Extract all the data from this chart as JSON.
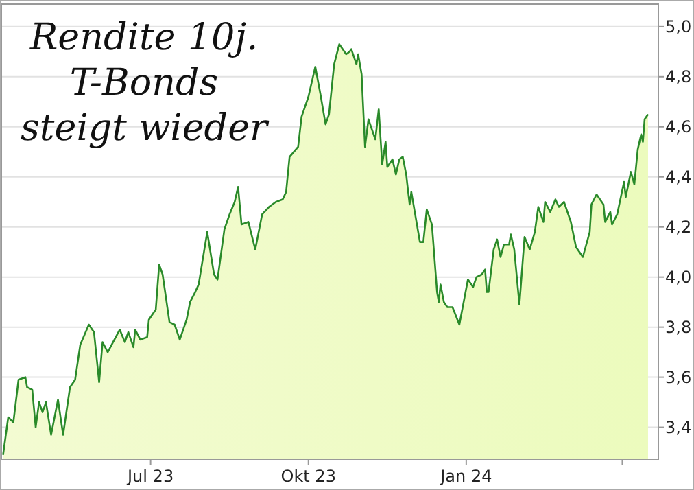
{
  "chart_data": {
    "type": "area",
    "title": "Rendite 10j.\nT-Bonds\nsteigt wieder",
    "x": [
      "2023-04-06",
      "2023-04-09",
      "2023-04-12",
      "2023-04-15",
      "2023-04-19",
      "2023-04-20",
      "2023-04-23",
      "2023-04-25",
      "2023-04-27",
      "2023-04-29",
      "2023-05-01",
      "2023-05-04",
      "2023-05-08",
      "2023-05-11",
      "2023-05-15",
      "2023-05-18",
      "2023-05-21",
      "2023-05-26",
      "2023-05-29",
      "2023-06-01",
      "2023-06-03",
      "2023-06-06",
      "2023-06-13",
      "2023-06-16",
      "2023-06-18",
      "2023-06-21",
      "2023-06-22",
      "2023-06-25",
      "2023-06-29",
      "2023-06-30",
      "2023-07-04",
      "2023-07-06",
      "2023-07-08",
      "2023-07-12",
      "2023-07-15",
      "2023-07-18",
      "2023-07-22",
      "2023-07-24",
      "2023-07-27",
      "2023-07-29",
      "2023-08-03",
      "2023-08-07",
      "2023-08-09",
      "2023-08-13",
      "2023-08-16",
      "2023-08-19",
      "2023-08-21",
      "2023-08-23",
      "2023-08-27",
      "2023-08-31",
      "2023-09-04",
      "2023-09-08",
      "2023-09-12",
      "2023-09-16",
      "2023-09-18",
      "2023-09-20",
      "2023-09-25",
      "2023-09-27",
      "2023-10-01",
      "2023-10-05",
      "2023-10-08",
      "2023-10-11",
      "2023-10-13",
      "2023-10-16",
      "2023-10-19",
      "2023-10-23",
      "2023-10-25",
      "2023-10-26",
      "2023-10-29",
      "2023-10-30",
      "2023-11-01",
      "2023-11-03",
      "2023-11-05",
      "2023-11-09",
      "2023-11-11",
      "2023-11-13",
      "2023-11-15",
      "2023-11-16",
      "2023-11-19",
      "2023-11-21",
      "2023-11-23",
      "2023-11-25",
      "2023-11-27",
      "2023-11-29",
      "2023-11-30",
      "2023-12-05",
      "2023-12-07",
      "2023-12-09",
      "2023-12-12",
      "2023-12-15",
      "2023-12-16",
      "2023-12-17",
      "2023-12-19",
      "2023-12-21",
      "2023-12-24",
      "2023-12-28",
      "2024-01-02",
      "2024-01-05",
      "2024-01-07",
      "2024-01-10",
      "2024-01-12",
      "2024-01-13",
      "2024-01-14",
      "2024-01-17",
      "2024-01-19",
      "2024-01-21",
      "2024-01-23",
      "2024-01-26",
      "2024-01-27",
      "2024-01-29",
      "2024-02-01",
      "2024-02-04",
      "2024-02-07",
      "2024-02-10",
      "2024-02-12",
      "2024-02-15",
      "2024-02-16",
      "2024-02-19",
      "2024-02-22",
      "2024-02-24",
      "2024-02-27",
      "2024-03-02",
      "2024-03-05",
      "2024-03-09",
      "2024-03-13",
      "2024-03-14",
      "2024-03-17",
      "2024-03-21",
      "2024-03-22",
      "2024-03-25",
      "2024-03-26",
      "2024-03-29",
      "2024-04-02",
      "2024-04-03",
      "2024-04-06",
      "2024-04-08",
      "2024-04-10",
      "2024-04-12",
      "2024-04-13",
      "2024-04-14",
      "2024-04-16"
    ],
    "series": [
      {
        "color": "#2a8a2a",
        "values": [
          3.29,
          3.44,
          3.42,
          3.59,
          3.6,
          3.56,
          3.55,
          3.4,
          3.5,
          3.46,
          3.5,
          3.37,
          3.51,
          3.37,
          3.56,
          3.59,
          3.73,
          3.81,
          3.78,
          3.58,
          3.74,
          3.7,
          3.79,
          3.74,
          3.78,
          3.72,
          3.79,
          3.75,
          3.76,
          3.83,
          3.87,
          4.05,
          4.01,
          3.82,
          3.81,
          3.75,
          3.83,
          3.9,
          3.94,
          3.97,
          4.18,
          4.01,
          3.99,
          4.19,
          4.25,
          4.3,
          4.36,
          4.21,
          4.22,
          4.11,
          4.25,
          4.28,
          4.3,
          4.31,
          4.34,
          4.48,
          4.52,
          4.64,
          4.72,
          4.84,
          4.73,
          4.61,
          4.65,
          4.85,
          4.93,
          4.89,
          4.9,
          4.91,
          4.85,
          4.89,
          4.81,
          4.52,
          4.63,
          4.55,
          4.67,
          4.45,
          4.54,
          4.44,
          4.47,
          4.41,
          4.47,
          4.48,
          4.41,
          4.29,
          4.34,
          4.14,
          4.14,
          4.27,
          4.21,
          3.94,
          3.9,
          3.97,
          3.9,
          3.88,
          3.88,
          3.81,
          3.99,
          3.96,
          4.0,
          4.01,
          4.03,
          3.94,
          3.94,
          4.11,
          4.15,
          4.08,
          4.13,
          4.13,
          4.17,
          4.11,
          3.89,
          4.16,
          4.11,
          4.18,
          4.28,
          4.22,
          4.3,
          4.26,
          4.31,
          4.28,
          4.3,
          4.22,
          4.12,
          4.08,
          4.18,
          4.29,
          4.33,
          4.29,
          4.22,
          4.26,
          4.21,
          4.25,
          4.38,
          4.32,
          4.42,
          4.37,
          4.51,
          4.57,
          4.54,
          4.63,
          4.65
        ]
      }
    ],
    "xlim": [
      "2023-04-05",
      "2024-04-22"
    ],
    "xticks": [
      {
        "value": "2023-07-01",
        "label": "Jul 23"
      },
      {
        "value": "2023-10-01",
        "label": "Okt 23"
      },
      {
        "value": "2024-01-01",
        "label": "Jan 24"
      },
      {
        "value": "2024-04-01",
        "label": null
      }
    ],
    "ylim": [
      3.27,
      5.09
    ],
    "yticks": [
      {
        "value": 3.4,
        "label": "3,4"
      },
      {
        "value": 3.6,
        "label": "3,6"
      },
      {
        "value": 3.8,
        "label": "3,8"
      },
      {
        "value": 4.0,
        "label": "4,0"
      },
      {
        "value": 4.2,
        "label": "4,2"
      },
      {
        "value": 4.4,
        "label": "4,4"
      },
      {
        "value": 4.6,
        "label": "4,6"
      },
      {
        "value": 4.8,
        "label": "4,8"
      },
      {
        "value": 5.0,
        "label": "5,0"
      }
    ],
    "grid": "y"
  }
}
